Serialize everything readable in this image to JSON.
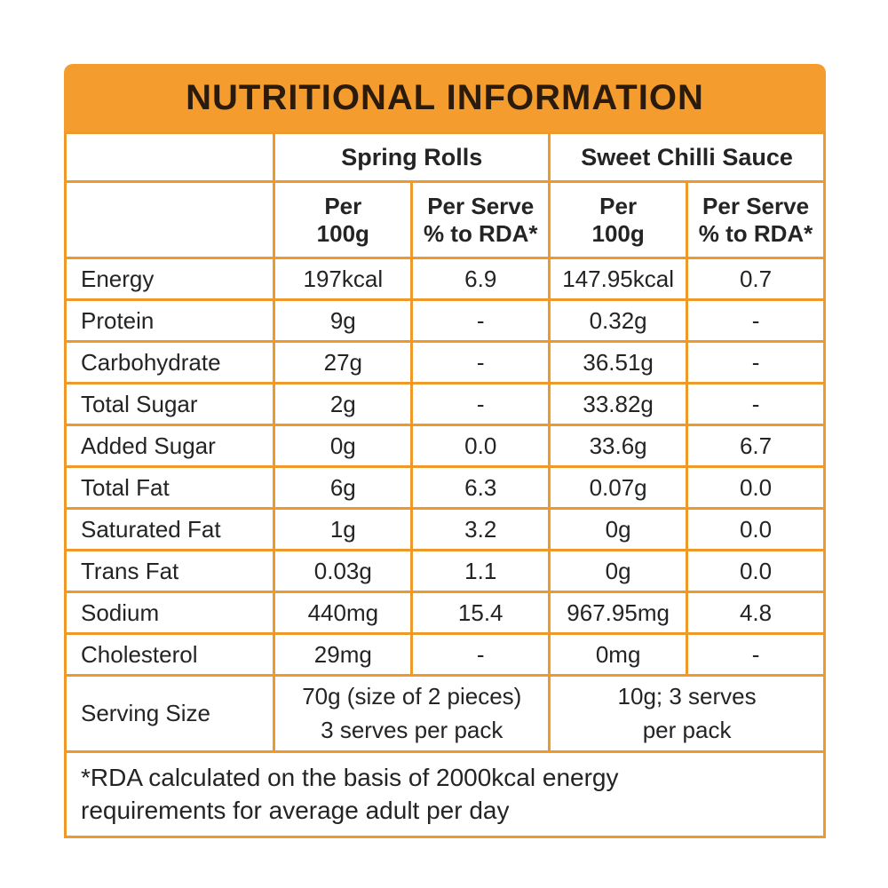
{
  "title": "NUTRITIONAL INFORMATION",
  "columns": {
    "group_headers": [
      "Spring Rolls",
      "Sweet Chilli Sauce"
    ],
    "sub_headers": [
      "Per\n100g",
      "Per Serve\n% to RDA*",
      "Per\n100g",
      "Per Serve\n% to RDA*"
    ]
  },
  "rows": [
    {
      "nutrient": "Energy",
      "values": [
        "197kcal",
        "6.9",
        "147.95kcal",
        "0.7"
      ]
    },
    {
      "nutrient": "Protein",
      "values": [
        "9g",
        "-",
        "0.32g",
        "-"
      ]
    },
    {
      "nutrient": "Carbohydrate",
      "values": [
        "27g",
        "-",
        "36.51g",
        "-"
      ]
    },
    {
      "nutrient": "Total Sugar",
      "values": [
        "2g",
        "-",
        "33.82g",
        "-"
      ]
    },
    {
      "nutrient": "Added Sugar",
      "values": [
        "0g",
        "0.0",
        "33.6g",
        "6.7"
      ]
    },
    {
      "nutrient": "Total Fat",
      "values": [
        "6g",
        "6.3",
        "0.07g",
        "0.0"
      ]
    },
    {
      "nutrient": "Saturated Fat",
      "values": [
        "1g",
        "3.2",
        "0g",
        "0.0"
      ]
    },
    {
      "nutrient": "Trans Fat",
      "values": [
        "0.03g",
        "1.1",
        "0g",
        "0.0"
      ]
    },
    {
      "nutrient": "Sodium",
      "values": [
        "440mg",
        "15.4",
        "967.95mg",
        "4.8"
      ]
    },
    {
      "nutrient": "Cholesterol",
      "values": [
        "29mg",
        "-",
        "0mg",
        "-"
      ]
    }
  ],
  "serving_size": {
    "label": "Serving Size",
    "spring_rolls": "70g (size of 2 pieces)\n3 serves per pack",
    "sweet_chilli_sauce": "10g; 3 serves\nper pack"
  },
  "footnote": "*RDA calculated on the basis of 2000kcal energy\nrequirements for average adult per day",
  "colors": {
    "accent_orange": "#F49C2E",
    "border_orange": "#F0992B",
    "title_text": "#2B1B0C",
    "body_text": "#242424"
  }
}
